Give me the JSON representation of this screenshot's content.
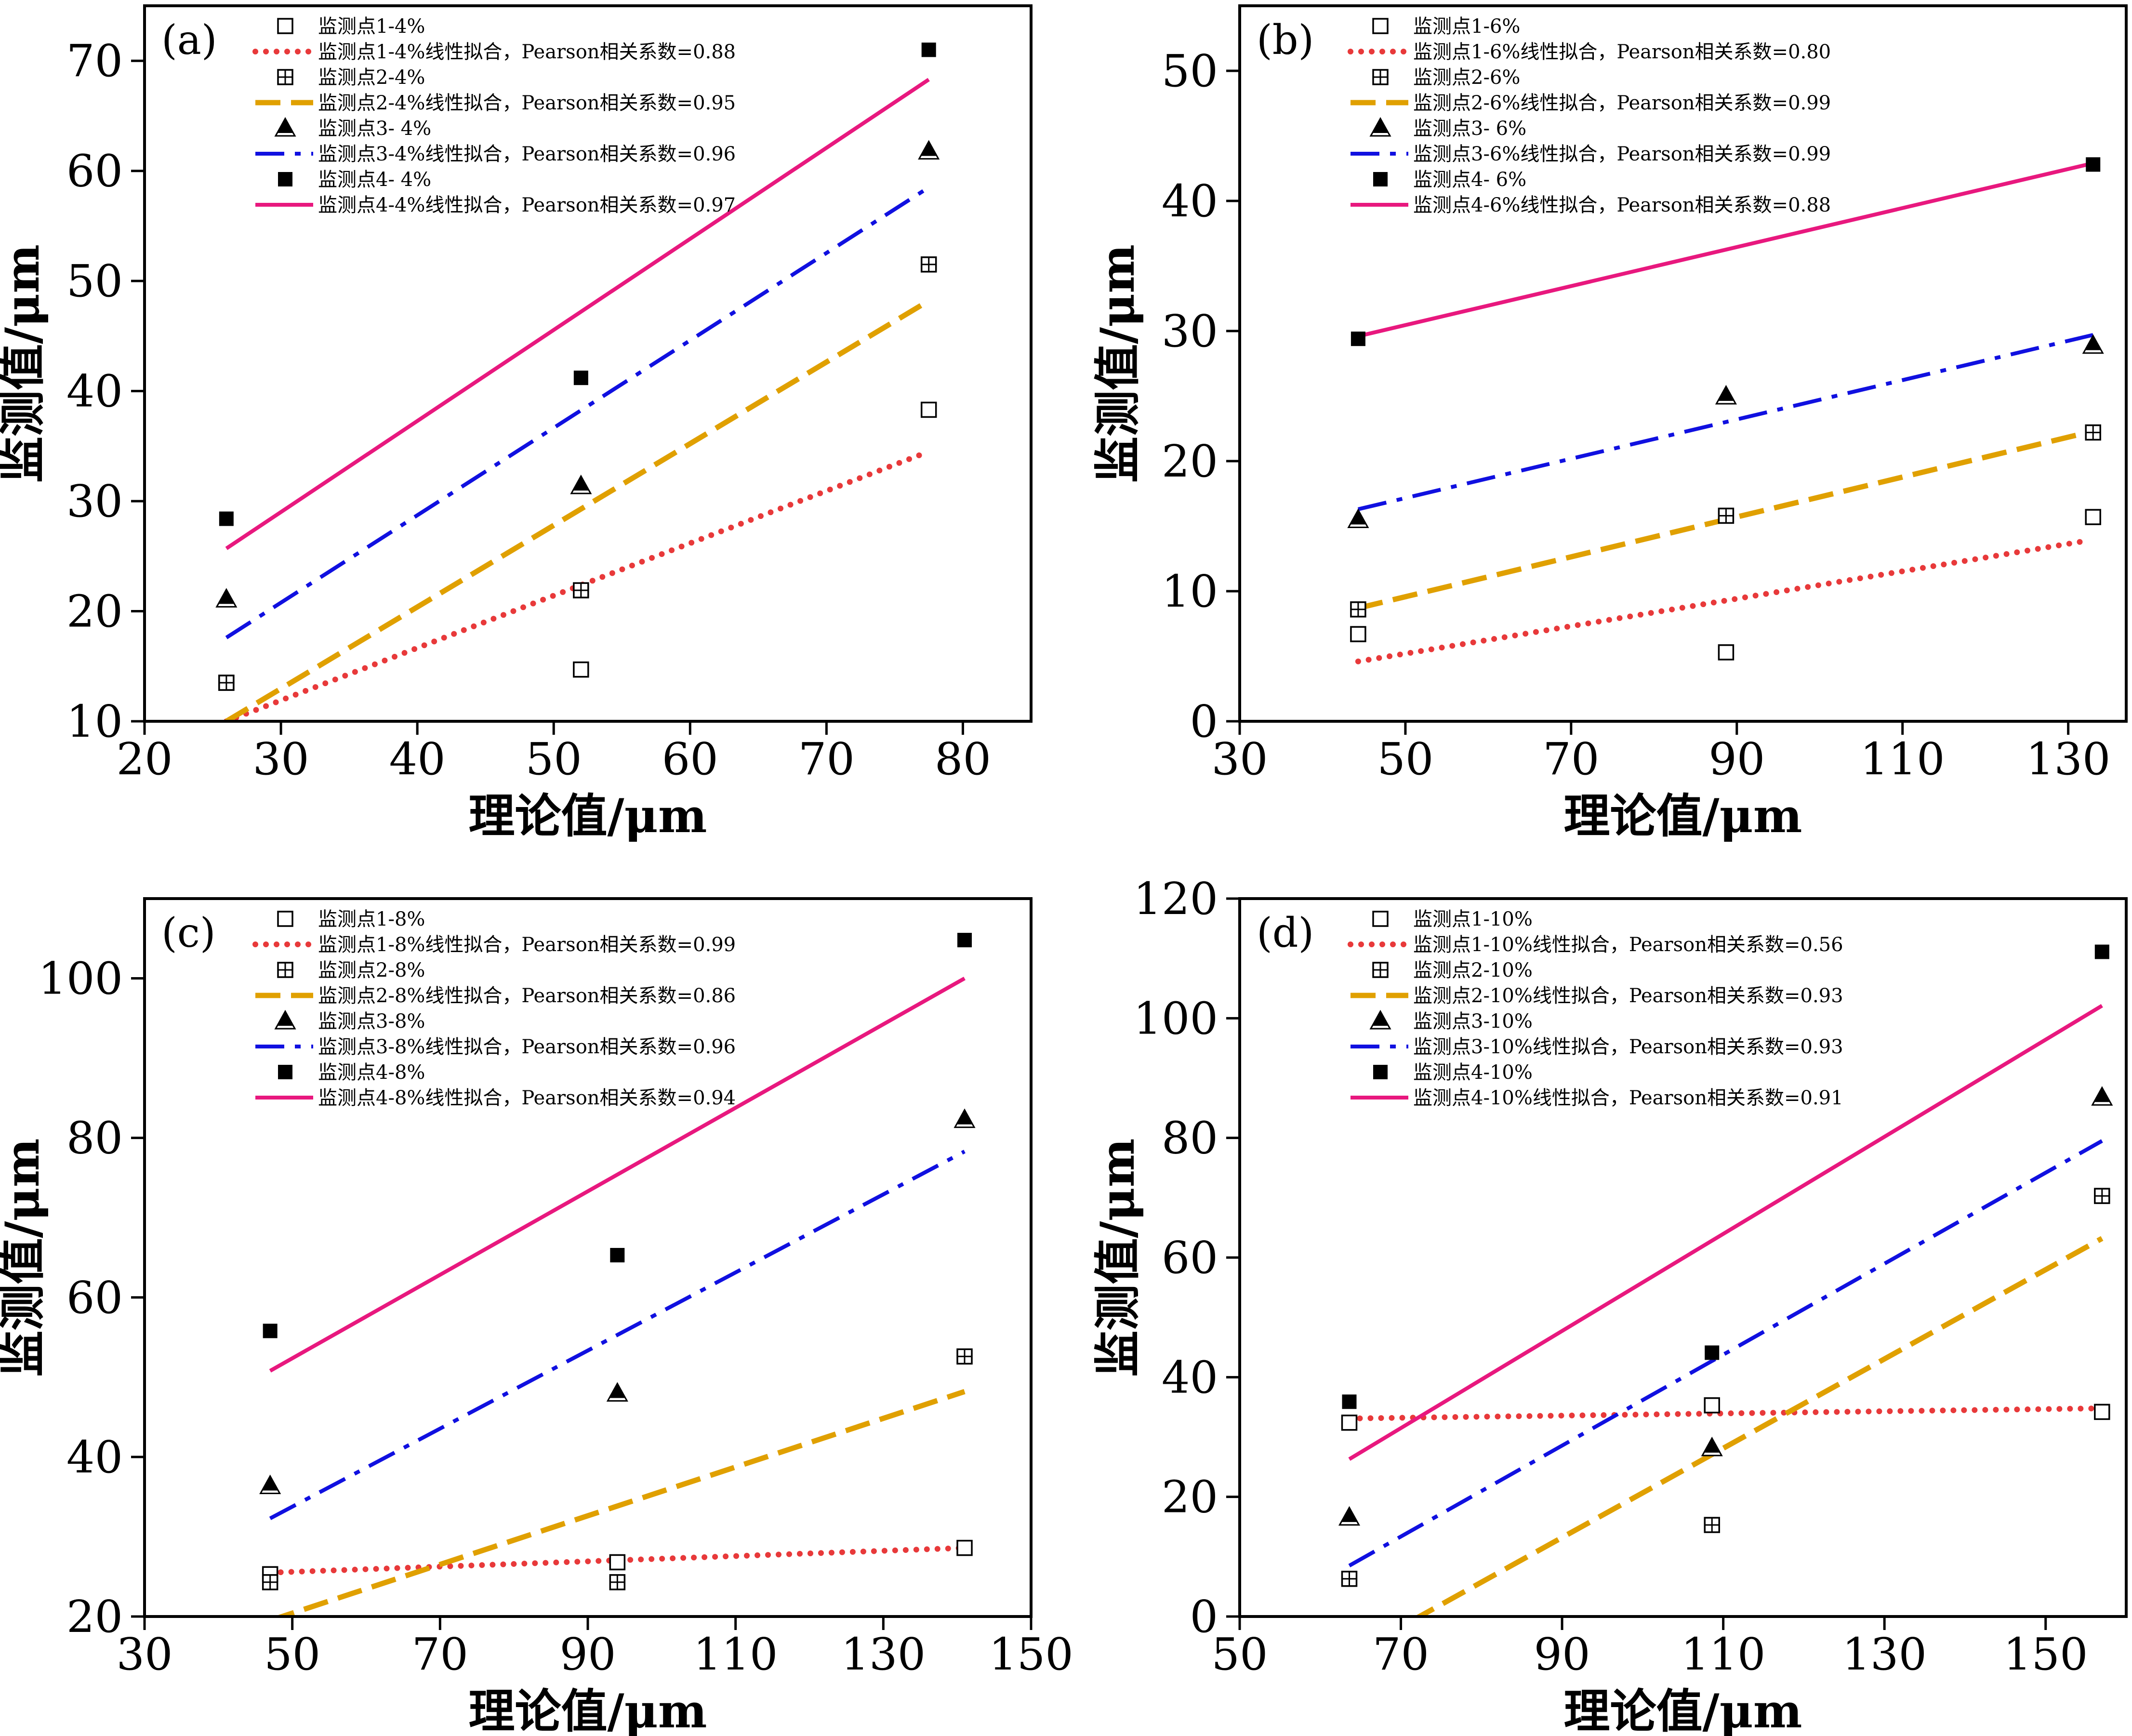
{
  "chart_data": [
    {
      "type": "scatter",
      "panel_label": "(a)",
      "xlabel": "理论值/μm",
      "ylabel": "监测值/μm",
      "xlim": [
        20,
        85
      ],
      "ylim": [
        10,
        75
      ],
      "xticks": [
        20,
        30,
        40,
        50,
        60,
        70,
        80
      ],
      "yticks": [
        10,
        20,
        30,
        40,
        50,
        60,
        70
      ],
      "legend_position": "top-left",
      "series": [
        {
          "name": "监测点1-4%",
          "marker": "open-square",
          "x": [
            26,
            52,
            77.5
          ],
          "y": [
            13.5,
            14.7,
            38.3
          ]
        },
        {
          "name": "监测点2-4%",
          "marker": "grid-square",
          "x": [
            26,
            52,
            77.5
          ],
          "y": [
            13.5,
            21.9,
            51.5
          ]
        },
        {
          "name": "监测点3- 4%",
          "marker": "triangle",
          "x": [
            26,
            52,
            77.5
          ],
          "y": [
            21.1,
            31.4,
            61.8
          ]
        },
        {
          "name": "监测点4- 4%",
          "marker": "filled-square",
          "x": [
            26,
            52,
            77.5
          ],
          "y": [
            28.4,
            41.2,
            71.0
          ]
        }
      ],
      "fits": [
        {
          "name": "监测点1-4%线性拟合，Pearson相关系数=0.88",
          "style": "dotted",
          "x": [
            26,
            77.5
          ],
          "y": [
            10.0,
            34.5
          ]
        },
        {
          "name": "监测点2-4%线性拟合，Pearson相关系数=0.95",
          "style": "dashed",
          "x": [
            26,
            77.5
          ],
          "y": [
            10.0,
            48.2
          ]
        },
        {
          "name": "监测点3-4%线性拟合，Pearson相关系数=0.96",
          "style": "dashdot",
          "x": [
            26,
            77.5
          ],
          "y": [
            17.6,
            58.5
          ]
        },
        {
          "name": "监测点4-4%线性拟合，Pearson相关系数=0.97",
          "style": "solid",
          "x": [
            26,
            77.5
          ],
          "y": [
            25.7,
            68.3
          ]
        }
      ]
    },
    {
      "type": "scatter",
      "panel_label": "(b)",
      "xlabel": "理论值/μm",
      "ylabel": "监测值/μm",
      "xlim": [
        30,
        137
      ],
      "ylim": [
        0,
        55
      ],
      "xticks": [
        30,
        50,
        70,
        90,
        110,
        130
      ],
      "yticks": [
        0,
        10,
        20,
        30,
        40,
        50
      ],
      "legend_position": "top-left",
      "series": [
        {
          "name": "监测点1-6%",
          "marker": "open-square",
          "x": [
            44.3,
            88.7,
            133
          ],
          "y": [
            6.7,
            5.3,
            15.7
          ]
        },
        {
          "name": "监测点2-6%",
          "marker": "grid-square",
          "x": [
            44.3,
            88.7,
            133
          ],
          "y": [
            8.6,
            15.8,
            22.2
          ]
        },
        {
          "name": "监测点3- 6%",
          "marker": "triangle",
          "x": [
            44.3,
            88.7,
            133
          ],
          "y": [
            15.5,
            25.0,
            28.9
          ]
        },
        {
          "name": "监测点4- 6%",
          "marker": "filled-square",
          "x": [
            44.3,
            88.7,
            133
          ],
          "y": [
            29.4,
            null,
            42.8
          ]
        }
      ],
      "fits": [
        {
          "name": "监测点1-6%线性拟合，Pearson相关系数=0.80",
          "style": "dotted",
          "x": [
            44.3,
            131.5
          ],
          "y": [
            4.6,
            13.8
          ]
        },
        {
          "name": "监测点2-6%线性拟合，Pearson相关系数=0.99",
          "style": "dashed",
          "x": [
            44.3,
            133
          ],
          "y": [
            8.7,
            22.3
          ]
        },
        {
          "name": "监测点3-6%线性拟合，Pearson相关系数=0.99",
          "style": "dashdot",
          "x": [
            44.3,
            133
          ],
          "y": [
            16.3,
            29.7
          ]
        },
        {
          "name": "监测点4-6%线性拟合，Pearson相关系数=0.88",
          "style": "solid",
          "x": [
            44.3,
            133
          ],
          "y": [
            29.6,
            42.9
          ]
        }
      ]
    },
    {
      "type": "scatter",
      "panel_label": "(c)",
      "xlabel": "理论值/μm",
      "ylabel": "监测值/μm",
      "xlim": [
        30,
        150
      ],
      "ylim": [
        20,
        110
      ],
      "xticks": [
        30,
        50,
        70,
        90,
        110,
        130,
        150
      ],
      "yticks": [
        20,
        40,
        60,
        80,
        100
      ],
      "legend_position": "top-left",
      "series": [
        {
          "name": "监测点1-8%",
          "marker": "open-square",
          "x": [
            47,
            94,
            141
          ],
          "y": [
            25.3,
            26.8,
            28.6
          ]
        },
        {
          "name": "监测点2-8%",
          "marker": "grid-square",
          "x": [
            47,
            94,
            141
          ],
          "y": [
            24.3,
            24.3,
            52.6
          ]
        },
        {
          "name": "监测点3-8%",
          "marker": "triangle",
          "x": [
            47,
            94,
            141
          ],
          "y": [
            36.4,
            48.0,
            82.3
          ]
        },
        {
          "name": "监测点4-8%",
          "marker": "filled-square",
          "x": [
            47,
            94,
            141
          ],
          "y": [
            55.8,
            65.3,
            104.8
          ]
        }
      ],
      "fits": [
        {
          "name": "监测点1-8%线性拟合，Pearson相关系数=0.99",
          "style": "dotted",
          "x": [
            47,
            141
          ],
          "y": [
            25.5,
            28.6
          ]
        },
        {
          "name": "监测点2-8%线性拟合，Pearson相关系数=0.86",
          "style": "dashed",
          "x": [
            47,
            141
          ],
          "y": [
            19.5,
            48.2
          ]
        },
        {
          "name": "监测点3-8%线性拟合，Pearson相关系数=0.96",
          "style": "dashdot",
          "x": [
            47,
            141
          ],
          "y": [
            32.3,
            78.3
          ]
        },
        {
          "name": "监测点4-8%线性拟合，Pearson相关系数=0.94",
          "style": "solid",
          "x": [
            47,
            141
          ],
          "y": [
            50.8,
            100.0
          ]
        }
      ]
    },
    {
      "type": "scatter",
      "panel_label": "(d)",
      "xlabel": "理论值/μm",
      "ylabel": "监测值/μm",
      "xlim": [
        50,
        160
      ],
      "ylim": [
        0,
        120
      ],
      "xticks": [
        50,
        70,
        90,
        110,
        130,
        150
      ],
      "yticks": [
        0,
        20,
        40,
        60,
        80,
        100,
        120
      ],
      "legend_position": "top-left",
      "series": [
        {
          "name": "监测点1-10%",
          "marker": "open-square",
          "x": [
            63.6,
            108.6,
            157
          ],
          "y": [
            32.4,
            35.3,
            34.2
          ]
        },
        {
          "name": "监测点2-10%",
          "marker": "grid-square",
          "x": [
            63.6,
            108.6,
            157
          ],
          "y": [
            6.3,
            15.3,
            70.3
          ]
        },
        {
          "name": "监测点3-10%",
          "marker": "triangle",
          "x": [
            63.6,
            108.6,
            157
          ],
          "y": [
            16.6,
            28.2,
            86.8
          ]
        },
        {
          "name": "监测点4-10%",
          "marker": "filled-square",
          "x": [
            63.6,
            108.6,
            157
          ],
          "y": [
            35.9,
            44.1,
            111.1
          ]
        }
      ],
      "fits": [
        {
          "name": "监测点1-10%线性拟合，Pearson相关系数=0.56",
          "style": "dotted",
          "x": [
            63.6,
            157
          ],
          "y": [
            33.1,
            34.8
          ]
        },
        {
          "name": "监测点2-10%线性拟合，Pearson相关系数=0.93",
          "style": "dashed",
          "x": [
            63.6,
            157
          ],
          "y": [
            -6.5,
            63.2
          ]
        },
        {
          "name": "监测点3-10%线性拟合，Pearson相关系数=0.93",
          "style": "dashdot",
          "x": [
            63.6,
            157
          ],
          "y": [
            8.5,
            79.5
          ]
        },
        {
          "name": "监测点4-10%线性拟合，Pearson相关系数=0.91",
          "style": "solid",
          "x": [
            63.6,
            157
          ],
          "y": [
            26.3,
            102.1
          ]
        }
      ]
    }
  ],
  "colors": {
    "dotted": "#e8393a",
    "dashed": "#e0a000",
    "dashdot": "#1010e0",
    "solid": "#e8187e",
    "marker": "#000000"
  }
}
